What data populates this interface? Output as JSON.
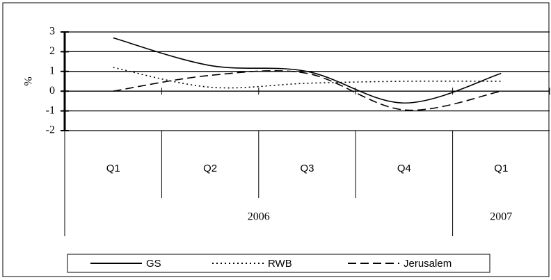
{
  "chart_data": {
    "type": "line",
    "ylabel": "%",
    "category_groups": [
      {
        "name": "2006",
        "categories": [
          "Q1",
          "Q2",
          "Q3",
          "Q4"
        ]
      },
      {
        "name": "2007",
        "categories": [
          "Q1"
        ]
      }
    ],
    "series": [
      {
        "name": "GS",
        "color": "#000000",
        "line_style": "solid",
        "values": [
          2.7,
          1.3,
          1.0,
          -0.6,
          0.9
        ]
      },
      {
        "name": "RWB",
        "color": "#000000",
        "line_style": "dotted",
        "values": [
          1.2,
          0.2,
          0.4,
          0.5,
          0.5
        ]
      },
      {
        "name": "Jerusalem",
        "color": "#000000",
        "line_style": "dashed",
        "values": [
          0,
          0.8,
          0.9,
          -0.95,
          0
        ]
      }
    ],
    "ylim": [
      -2,
      3
    ],
    "yticks": [
      -2,
      -1,
      0,
      1,
      2,
      3
    ],
    "grid": true,
    "legend": "bottom"
  }
}
